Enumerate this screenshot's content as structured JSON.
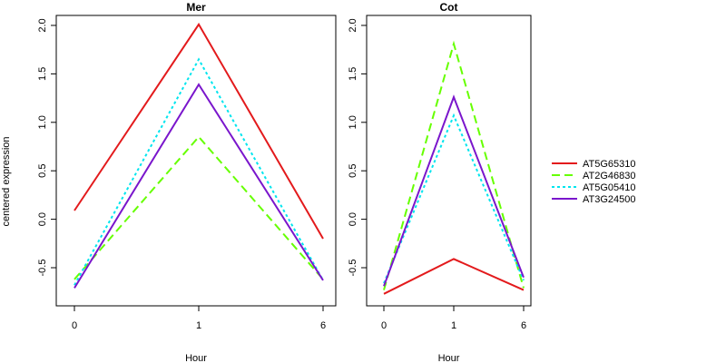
{
  "ylabel": "centered expression",
  "chart_data": [
    {
      "type": "line",
      "title": "Mer",
      "xlabel": "Hour",
      "categories": [
        "0",
        "1",
        "6"
      ],
      "ylim": [
        -0.85,
        2.1
      ],
      "yticks": [
        "-0.5",
        "0.0",
        "0.5",
        "1.0",
        "1.5",
        "2.0"
      ],
      "series": [
        {
          "name": "AT5G65310",
          "values": [
            0.09,
            2.01,
            -0.2
          ]
        },
        {
          "name": "AT2G46830",
          "values": [
            -0.62,
            0.85,
            -0.62
          ]
        },
        {
          "name": "AT5G05410",
          "values": [
            -0.68,
            1.65,
            -0.63
          ]
        },
        {
          "name": "AT3G24500",
          "values": [
            -0.71,
            1.39,
            -0.63
          ]
        }
      ]
    },
    {
      "type": "line",
      "title": "Cot",
      "xlabel": "Hour",
      "categories": [
        "0",
        "1",
        "6"
      ],
      "ylim": [
        -0.85,
        2.1
      ],
      "yticks": [
        "-0.5",
        "0.0",
        "0.5",
        "1.0",
        "1.5",
        "2.0"
      ],
      "series": [
        {
          "name": "AT5G65310",
          "values": [
            -0.77,
            -0.41,
            -0.73
          ]
        },
        {
          "name": "AT2G46830",
          "values": [
            -0.73,
            1.81,
            -0.71
          ]
        },
        {
          "name": "AT5G05410",
          "values": [
            -0.66,
            1.07,
            -0.63
          ]
        },
        {
          "name": "AT3G24500",
          "values": [
            -0.69,
            1.26,
            -0.6
          ]
        }
      ]
    }
  ],
  "legend": {
    "placement": "right",
    "items": [
      {
        "name": "AT5G65310",
        "color": "#e31a1c",
        "dash": "solid"
      },
      {
        "name": "AT2G46830",
        "color": "#66ff00",
        "dash": "dashed"
      },
      {
        "name": "AT5G05410",
        "color": "#00e5ee",
        "dash": "dotted"
      },
      {
        "name": "AT3G24500",
        "color": "#7a16cc",
        "dash": "solid"
      }
    ]
  }
}
